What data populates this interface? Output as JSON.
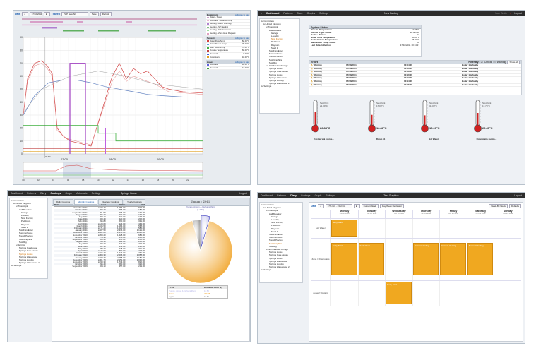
{
  "p1": {
    "date_label": "Date",
    "date_value": "17/10/2011",
    "saved_label": "Saved",
    "saved_value": "PHP New All",
    "save_btn": "Save",
    "refresh_btn": "Refresh",
    "legend_sections": [
      {
        "title": "Equipment",
        "action": "collapse to pan",
        "items": [
          "Boiler - Status",
          "Hot Water - Heat Running",
          "Heating - Boiler Running",
          "Heating - SP Heating",
          "Heating - SP Heat Temp",
          "Heating - Zone Heat Request"
        ]
      },
      {
        "title": "Sensors",
        "action": "collapse to pan",
        "items": [
          "Boiler Flow Temp",
          "Boiler Return Temp",
          "Main Boiler Pump",
          "Outside Temperature",
          "Room 11",
          "Downstairs"
        ]
      },
      {
        "title": "Zones",
        "action": "collapse to pan",
        "items": [
          "Hot Water",
          "Room 11"
        ]
      }
    ],
    "legend_values": [
      "82.00°C",
      "38.00°C",
      "70.00°C",
      "60.00°C",
      "8.00°C",
      "18.00°C",
      "18.00°C",
      "13.00°C"
    ],
    "y_ticks": [
      "90",
      "80",
      "70",
      "60",
      "50",
      "40",
      "30",
      "20",
      "10",
      "0"
    ],
    "x_ticks": [
      "07:00",
      "08:00",
      "09:00"
    ],
    "cursor_label": "06:57",
    "nav_ticks": [
      "00",
      "02",
      "04",
      "06",
      "08",
      "10",
      "12",
      "14",
      "16",
      "18",
      "20",
      "22"
    ]
  },
  "p2": {
    "topbar": {
      "nav": [
        "Dashboard",
        "Patterns",
        "Diary",
        "Graphs",
        "Settings"
      ],
      "title": "New Factory",
      "user": "Sam Smith",
      "logout": "Logout"
    },
    "tree": [
      {
        "t": "Controllers",
        "l": 0
      },
      {
        "t": "United Kingdom",
        "l": 1
      },
      {
        "t": "Trescot plc",
        "l": 2
      },
      {
        "t": "Hall Meadow",
        "l": 3
      },
      {
        "t": "Garage",
        "l": 4
      },
      {
        "t": "Laundry",
        "l": 4
      },
      {
        "t": "New Factory",
        "l": 4,
        "sel": true
      },
      {
        "t": "PodRoom",
        "l": 4
      },
      {
        "t": "Rayburn",
        "l": 4
      },
      {
        "t": "Shed 1",
        "l": 4
      },
      {
        "t": "SolaFundEster",
        "l": 3
      },
      {
        "t": "Summerhouse",
        "l": 3
      },
      {
        "t": "TrendsPavilion",
        "l": 3
      },
      {
        "t": "Test Graphics",
        "l": 3
      },
      {
        "t": "Test Rig",
        "l": 3
      },
      {
        "t": "Hall Meadow Springs",
        "l": 2
      },
      {
        "t": "Springs House",
        "l": 3
      },
      {
        "t": "Springs Gate House",
        "l": 3
      },
      {
        "t": "Springs House",
        "l": 3
      },
      {
        "t": "Springs Warehouse",
        "l": 3
      },
      {
        "t": "Springs Holiday",
        "l": 3
      },
      {
        "t": "Springs Warehouse 2",
        "l": 3
      },
      {
        "t": "Settings",
        "l": 0
      }
    ],
    "status_title": "System Status",
    "status_rows": [
      {
        "k": "Outside Temperature",
        "v": "13.25°C"
      },
      {
        "k": "Outside Light Status",
        "v": "No Sensor"
      },
      {
        "k": "Boiler 1 Status",
        "v": "On"
      },
      {
        "k": "Boiler Flow Temperature",
        "v": "38.00°C"
      },
      {
        "k": "Boiler Return Temperature",
        "v": "36.00°C"
      },
      {
        "k": "Main Boiler Pump Status",
        "v": "On"
      },
      {
        "k": "Last Data Collection",
        "v": "17/10/2011 10:14:17"
      }
    ],
    "alarms_title": "Errors",
    "filter_label": "Filter By:",
    "filter_critical": "Critical",
    "filter_warning": "Warning",
    "filter_btn": "Show All",
    "alarms": [
      {
        "type": "Warning",
        "date": "17/10/2011",
        "time": "10:04:00",
        "msg": "Boiler 1 is faulty"
      },
      {
        "type": "Warning",
        "date": "17/10/2011",
        "time": "10:06:00",
        "msg": "Boiler 1 is faulty"
      },
      {
        "type": "Warning",
        "date": "17/10/2011",
        "time": "10:08:00",
        "msg": "Boiler 1 is faulty"
      },
      {
        "type": "Warning",
        "date": "17/10/2011",
        "time": "10:10:00",
        "msg": "Boiler 1 is faulty"
      },
      {
        "type": "Warning",
        "date": "17/10/2011",
        "time": "10:12:00",
        "msg": "Boiler 1 is faulty"
      },
      {
        "type": "Warning",
        "date": "17/10/2011",
        "time": "10:14:00",
        "msg": "Boiler 1 is faulty"
      },
      {
        "type": "Warning",
        "date": "17/10/2011",
        "time": "10:16:00",
        "msg": "Boiler 1 is faulty"
      }
    ],
    "thermos": [
      {
        "sp": "Set-Point 21.00°C",
        "val": "22.88°C",
        "name": "Upstairs & rooms...",
        "fill": 0.55
      },
      {
        "sp": "Set-Point 17.00°C",
        "val": "16.88°C",
        "name": "Room 11",
        "fill": 0.42
      },
      {
        "sp": "Set-Point 38.00°C",
        "val": "16.01°C",
        "name": "Hot Water",
        "fill": 0.4
      },
      {
        "sp": "Set-Point 13.75°C",
        "val": "20.47°C",
        "name": "Downstairs rooms...",
        "fill": 0.5
      }
    ]
  },
  "p3": {
    "topbar": {
      "nav": [
        "Dashboard",
        "Patterns",
        "Diary",
        "Costings",
        "Graph",
        "Automatic",
        "Settings"
      ],
      "title": "Springs House",
      "logout": "Logout"
    },
    "tree": [
      {
        "t": "Controllers",
        "l": 0
      },
      {
        "t": "United Kingdom",
        "l": 1
      },
      {
        "t": "Trescot plc",
        "l": 2
      },
      {
        "t": "Hall Meadow",
        "l": 3
      },
      {
        "t": "Garage",
        "l": 4
      },
      {
        "t": "Laundry",
        "l": 4
      },
      {
        "t": "New Factory",
        "l": 4
      },
      {
        "t": "PodRoom",
        "l": 4
      },
      {
        "t": "Rayburn",
        "l": 4
      },
      {
        "t": "Shed 1",
        "l": 4
      },
      {
        "t": "SolaFundEster",
        "l": 3
      },
      {
        "t": "Summerhouse",
        "l": 3
      },
      {
        "t": "TrendsPavilion",
        "l": 3
      },
      {
        "t": "Test Graphics",
        "l": 3
      },
      {
        "t": "Test Rig",
        "l": 3
      },
      {
        "t": "Springs",
        "l": 2
      },
      {
        "t": "Springs Gatehouse",
        "l": 3
      },
      {
        "t": "Springs Gate House",
        "l": 3
      },
      {
        "t": "Springs House",
        "l": 3,
        "sel": true
      },
      {
        "t": "Springs Warehouse",
        "l": 3
      },
      {
        "t": "Springs Holiday",
        "l": 3
      },
      {
        "t": "Springs Warehouse 2",
        "l": 3
      },
      {
        "t": "Settings",
        "l": 0
      }
    ],
    "tabs": [
      "Daily Costings",
      "Monthly Costings",
      "Quarterly Costings",
      "Yearly Costings"
    ],
    "cols": [
      "Date",
      "Cost",
      "KWH's",
      "CO2"
    ],
    "rows": [
      [
        "November 2011",
        "£169.40",
        "1,256.00",
        "603.00"
      ],
      [
        "October 2011",
        "£50.20",
        "385.00",
        "185.00"
      ],
      [
        "September 2011",
        "£51.50",
        "395.00",
        "190.00"
      ],
      [
        "August 2011",
        "£55.20",
        "400.00",
        "192.00"
      ],
      [
        "July 2011",
        "£57.10",
        "410.00",
        "197.00"
      ],
      [
        "June 2011",
        "£60.40",
        "420.00",
        "202.00"
      ],
      [
        "May 2011",
        "£96.80",
        "690.00",
        "331.00"
      ],
      [
        "April 2011",
        "£129.60",
        "924.00",
        "444.00"
      ],
      [
        "March 2011",
        "£165.50",
        "1,184.00",
        "568.00"
      ],
      [
        "February 2011",
        "£171.20",
        "1,220.00",
        "586.00"
      ],
      [
        "January 2011",
        "£327.50",
        "2,336.00",
        "1,121.00"
      ],
      [
        "December 2010",
        "£301.60",
        "2,150.00",
        "1,032.00"
      ],
      [
        "November 2010",
        "£200.20",
        "1,428.00",
        "685.00"
      ],
      [
        "October 2010",
        "£78.30",
        "558.00",
        "268.00"
      ],
      [
        "September 2010",
        "£60.40",
        "430.00",
        "206.00"
      ],
      [
        "August 2010",
        "£59.10",
        "421.00",
        "202.00"
      ],
      [
        "July 2010",
        "£60.20",
        "429.00",
        "206.00"
      ],
      [
        "June 2010",
        "£62.10",
        "442.00",
        "212.00"
      ],
      [
        "May 2010",
        "£88.20",
        "628.00",
        "301.00"
      ],
      [
        "April 2010",
        "£125.00",
        "890.00",
        "427.00"
      ],
      [
        "March 2010",
        "£216.40",
        "1,543.00",
        "741.00"
      ],
      [
        "February 2010",
        "£309.30",
        "2,205.00",
        "1,058.00"
      ],
      [
        "January 2010",
        "£344.70",
        "2,458.00",
        "1,180.00"
      ],
      [
        "December 2009",
        "£301.70",
        "2,151.00",
        "1,032.00"
      ],
      [
        "November 2009",
        "£240.30",
        "1,713.00",
        "822.00"
      ],
      [
        "October 2009",
        "£95.40",
        "680.00",
        "326.00"
      ],
      [
        "September 2009",
        "£64.10",
        "457.00",
        "219.00"
      ]
    ],
    "pie_title": "January 2011",
    "pie_sub": "Pumps, Aircon & Dehumidifiers",
    "pie_sub2": "(4.43%)",
    "legend_head": [
      "TYPE",
      "RUNNING COST (£)"
    ],
    "legend_rows": [
      {
        "type": "Pumps, Aircon & Dehumidifiers",
        "cost": "14.53",
        "color": "#b8b8e8"
      },
      {
        "type": "Boiler",
        "cost": "299.35",
        "color": "#f0a020"
      },
      {
        "type": "Lights",
        "cost": "13.65",
        "color": "#888888"
      }
    ]
  },
  "p4": {
    "topbar": {
      "nav": [
        "Dashboard",
        "Patterns",
        "Diary",
        "Costings",
        "Graph",
        "Settings"
      ],
      "title": "Test Graphics",
      "logout": "Logout"
    },
    "tree": [
      {
        "t": "Controllers",
        "l": 0
      },
      {
        "t": "United Kingdom",
        "l": 1
      },
      {
        "t": "Trescot plc",
        "l": 2
      },
      {
        "t": "Hall Meadow",
        "l": 3
      },
      {
        "t": "Garage",
        "l": 4
      },
      {
        "t": "Laundry",
        "l": 4
      },
      {
        "t": "New Factory",
        "l": 4
      },
      {
        "t": "PodRoom",
        "l": 4
      },
      {
        "t": "Rayburn",
        "l": 4
      },
      {
        "t": "Shed 1",
        "l": 4
      },
      {
        "t": "SolaFundEster",
        "l": 3
      },
      {
        "t": "Summerhouse",
        "l": 3
      },
      {
        "t": "TrendsPavilion",
        "l": 3
      },
      {
        "t": "Test Graphics",
        "l": 3,
        "sel": true
      },
      {
        "t": "Test Rig",
        "l": 3
      },
      {
        "t": "Hall Meadow Springs",
        "l": 2
      },
      {
        "t": "Springs House",
        "l": 3
      },
      {
        "t": "Springs Gate House",
        "l": 3
      },
      {
        "t": "Springs House",
        "l": 3
      },
      {
        "t": "Springs Warehouse",
        "l": 3
      },
      {
        "t": "Springs Holiday",
        "l": 3
      },
      {
        "t": "Springs Warehouse 2",
        "l": 3
      },
      {
        "t": "Settings",
        "l": 0
      }
    ],
    "date_label": "Date",
    "date_range": "17th Oct - 23rd Oct",
    "current_week": "Current Week",
    "day_week_rep": "Day/Week Replicator",
    "week_by_week": "Week-By-Week",
    "defaults": "Defaults",
    "days": [
      {
        "d": "Monday",
        "dt": "Oct 17 2011"
      },
      {
        "d": "Tuesday",
        "dt": "Oct 18 2011"
      },
      {
        "d": "Wednesday",
        "dt": "Oct 19 2011"
      },
      {
        "d": "Thursday",
        "dt": "Oct 20 2011"
      },
      {
        "d": "Friday",
        "dt": "Oct 21 2011"
      },
      {
        "d": "Saturday",
        "dt": "Oct 22 2011"
      },
      {
        "d": "Sunday",
        "dt": "Oct 23 2011"
      }
    ],
    "zones": [
      "Hot Water",
      "Zone 1 Downstairs",
      "Zone 2 Upstairs"
    ],
    "events": [
      {
        "zone": 0,
        "day": 0,
        "label": "Early Start"
      },
      {
        "zone": 1,
        "day": 0,
        "label": "Early Start"
      },
      {
        "zone": 1,
        "day": 1,
        "label": "Early Start"
      },
      {
        "zone": 1,
        "day": 3,
        "label": "Normal Heating"
      },
      {
        "zone": 1,
        "day": 4,
        "label": "Normal Heating"
      },
      {
        "zone": 1,
        "day": 5,
        "label": "Normal Heating"
      },
      {
        "zone": 2,
        "day": 2,
        "label": "Early Start"
      }
    ]
  }
}
